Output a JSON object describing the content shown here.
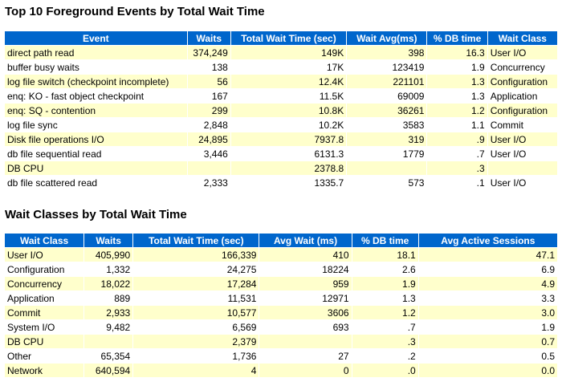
{
  "section1": {
    "title": "Top 10 Foreground Events by Total Wait Time",
    "table": {
      "columns": [
        "Event",
        "Waits",
        "Total Wait Time (sec)",
        "Wait Avg(ms)",
        "% DB time",
        "Wait Class"
      ],
      "rows": [
        [
          "direct path read",
          "374,249",
          "149K",
          "398",
          "16.3",
          "User I/O"
        ],
        [
          "buffer busy waits",
          "138",
          "17K",
          "123419",
          "1.9",
          "Concurrency"
        ],
        [
          "log file switch (checkpoint incomplete)",
          "56",
          "12.4K",
          "221101",
          "1.3",
          "Configuration"
        ],
        [
          "enq: KO - fast object checkpoint",
          "167",
          "11.5K",
          "69009",
          "1.3",
          "Application"
        ],
        [
          "enq: SQ - contention",
          "299",
          "10.8K",
          "36261",
          "1.2",
          "Configuration"
        ],
        [
          "log file sync",
          "2,848",
          "10.2K",
          "3583",
          "1.1",
          "Commit"
        ],
        [
          "Disk file operations I/O",
          "24,895",
          "7937.8",
          "319",
          ".9",
          "User I/O"
        ],
        [
          "db file sequential read",
          "3,446",
          "6131.3",
          "1779",
          ".7",
          "User I/O"
        ],
        [
          "DB CPU",
          null,
          "2378.8",
          null,
          ".3",
          null
        ],
        [
          "db file scattered read",
          "2,333",
          "1335.7",
          "573",
          ".1",
          "User I/O"
        ]
      ]
    }
  },
  "section2": {
    "title": "Wait Classes by Total Wait Time",
    "table": {
      "columns": [
        "Wait Class",
        "Waits",
        "Total Wait Time (sec)",
        "Avg Wait (ms)",
        "% DB time",
        "Avg Active Sessions"
      ],
      "rows": [
        [
          "User I/O",
          "405,990",
          "166,339",
          "410",
          "18.1",
          "47.1"
        ],
        [
          "Configuration",
          "1,332",
          "24,275",
          "18224",
          "2.6",
          "6.9"
        ],
        [
          "Concurrency",
          "18,022",
          "17,284",
          "959",
          "1.9",
          "4.9"
        ],
        [
          "Application",
          "889",
          "11,531",
          "12971",
          "1.3",
          "3.3"
        ],
        [
          "Commit",
          "2,933",
          "10,577",
          "3606",
          "1.2",
          "3.0"
        ],
        [
          "System I/O",
          "9,482",
          "6,569",
          "693",
          ".7",
          "1.9"
        ],
        [
          "DB CPU",
          null,
          "2,379",
          null,
          ".3",
          "0.7"
        ],
        [
          "Other",
          "65,354",
          "1,736",
          "27",
          ".2",
          "0.5"
        ],
        [
          "Network",
          "640,594",
          "4",
          "0",
          ".0",
          "0.0"
        ]
      ]
    }
  }
}
